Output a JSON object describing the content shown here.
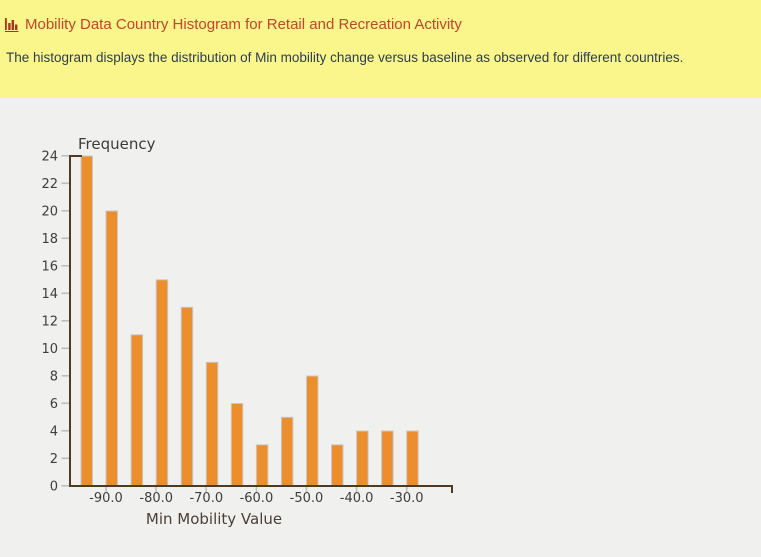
{
  "header": {
    "title": "Mobility Data Country Histogram for Retail and Recreation Activity",
    "subtitle": "The histogram displays the distribution of Min mobility change versus baseline as observed for different countries.",
    "background_color": "#faf68c",
    "title_color": "#c2452c",
    "subtitle_color": "#2c3e50",
    "icon": "bar-chart-icon"
  },
  "chart_data": {
    "type": "bar",
    "title": "",
    "xlabel": "Min Mobility Value",
    "ylabel": "Frequency",
    "bin_width": 5,
    "bin_edges": [
      -95,
      -90,
      -85,
      -80,
      -75,
      -70,
      -65,
      -60,
      -55,
      -50,
      -45,
      -40,
      -35,
      -30,
      -25
    ],
    "frequencies": [
      24,
      20,
      11,
      15,
      13,
      9,
      6,
      3,
      5,
      8,
      3,
      4,
      4,
      4
    ],
    "x_tick_labels": [
      "-90.0",
      "-80.0",
      "-70.0",
      "-60.0",
      "-50.0",
      "-40.0",
      "-30.0"
    ],
    "x_tick_values": [
      -90,
      -80,
      -70,
      -60,
      -50,
      -40,
      -30
    ],
    "y_ticks": [
      0,
      2,
      4,
      6,
      8,
      10,
      12,
      14,
      16,
      18,
      20,
      22,
      24
    ],
    "ylim": [
      0,
      24
    ],
    "grid": false,
    "legend": false,
    "bar_color": "#ed8e2c",
    "bar_border_color": "#c9c9c9",
    "axis_color": "#4e3b24",
    "tick_color": "#bdbdbd",
    "tick_label_color": "#3e3e3e",
    "background_color": "#f0f0ee"
  }
}
